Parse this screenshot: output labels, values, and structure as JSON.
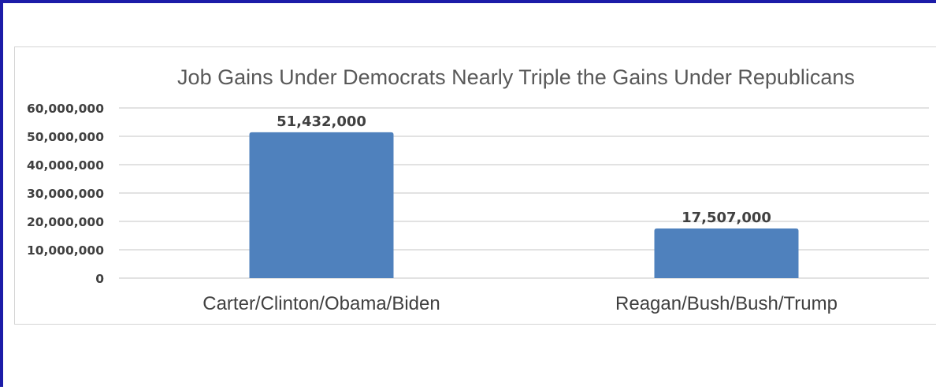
{
  "chart_data": {
    "type": "bar",
    "title": "Job Gains Under Democrats Nearly Triple the Gains Under Republicans",
    "categories": [
      "Carter/Clinton/Obama/Biden",
      "Reagan/Bush/Bush/Trump"
    ],
    "values": [
      51432000,
      17507000
    ],
    "data_labels": [
      "51,432,000",
      "17,507,000"
    ],
    "y_ticks": [
      "0",
      "10,000,000",
      "20,000,000",
      "30,000,000",
      "40,000,000",
      "50,000,000",
      "60,000,000"
    ],
    "ylim": [
      0,
      60000000
    ],
    "grid": true,
    "legend": "none",
    "bar_color": "#4f81bd",
    "frame_color": "#1c1ca8"
  }
}
